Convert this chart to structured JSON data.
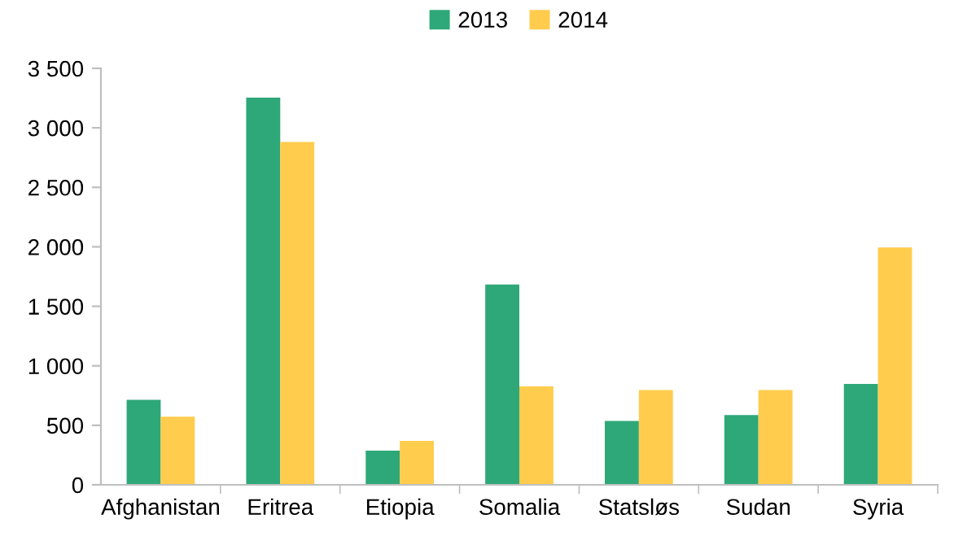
{
  "chart_data": {
    "type": "bar",
    "categories": [
      "Afghanistan",
      "Eritrea",
      "Etiopia",
      "Somalia",
      "Statsløs",
      "Sudan",
      "Syria"
    ],
    "series": [
      {
        "name": "2013",
        "color": "#2ea878",
        "values": [
          715,
          3254,
          287,
          1684,
          537,
          587,
          847
        ]
      },
      {
        "name": "2014",
        "color": "#ffcc4d",
        "values": [
          573,
          2881,
          369,
          828,
          797,
          797,
          1994
        ]
      }
    ],
    "ylim": [
      0,
      3500
    ],
    "yticks": [
      {
        "value": 0,
        "label": "0"
      },
      {
        "value": 500,
        "label": "500"
      },
      {
        "value": 1000,
        "label": "1 000"
      },
      {
        "value": 1500,
        "label": "1 500"
      },
      {
        "value": 2000,
        "label": "2 000"
      },
      {
        "value": 2500,
        "label": "2 500"
      },
      {
        "value": 3000,
        "label": "3 000"
      },
      {
        "value": 3500,
        "label": "3 500"
      }
    ],
    "grid": false,
    "legend": "top"
  }
}
